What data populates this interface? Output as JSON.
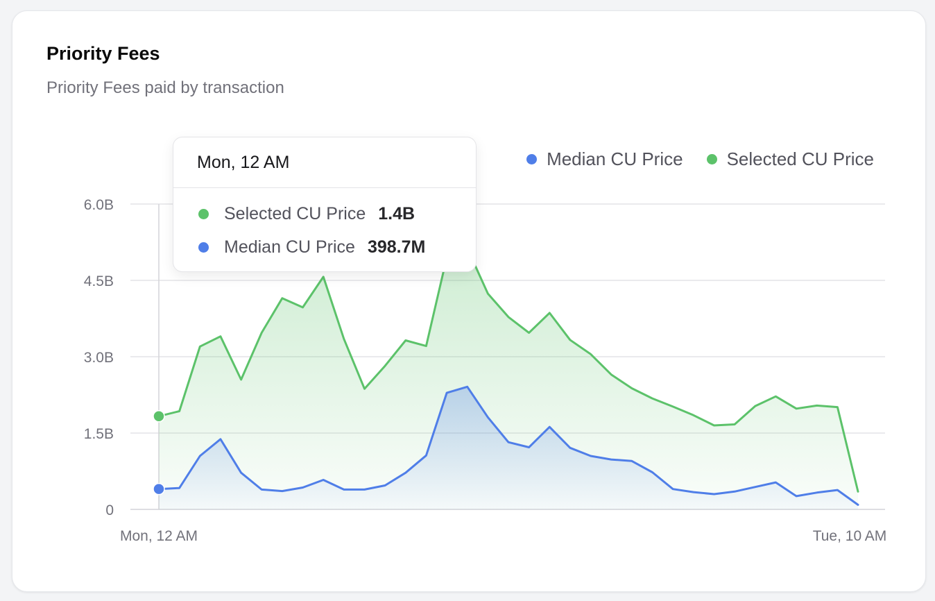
{
  "card": {
    "title": "Priority Fees",
    "subtitle": "Priority Fees paid by transaction"
  },
  "legend": [
    {
      "label": "Median CU Price",
      "color": "#4f7ee8"
    },
    {
      "label": "Selected CU Price",
      "color": "#5cc26a"
    }
  ],
  "tooltip": {
    "title": "Mon, 12 AM",
    "rows": [
      {
        "label": "Selected CU Price",
        "value": "1.4B",
        "color": "#5cc26a"
      },
      {
        "label": "Median CU Price",
        "value": "398.7M",
        "color": "#4f7ee8"
      }
    ]
  },
  "chart_data": {
    "type": "area",
    "title": "Priority Fees",
    "subtitle": "Priority Fees paid by transaction",
    "x_tick_labels": [
      "Mon, 12 AM",
      "Tue, 10 AM"
    ],
    "y_tick_labels": [
      "0",
      "1.5B",
      "3.0B",
      "4.5B",
      "6.0B"
    ],
    "y_ticks": [
      0,
      1.5,
      3.0,
      4.5,
      6.0
    ],
    "ylim": [
      0,
      6.0
    ],
    "x_count": 35,
    "grid": true,
    "legend_position": "top-right",
    "series": [
      {
        "name": "Selected CU Price",
        "color": "#5cc26a",
        "values": [
          1.83,
          1.93,
          3.2,
          3.4,
          2.55,
          3.47,
          4.15,
          3.97,
          4.57,
          3.35,
          2.37,
          2.82,
          3.32,
          3.21,
          4.95,
          5.13,
          4.24,
          3.78,
          3.47,
          3.86,
          3.33,
          3.05,
          2.65,
          2.38,
          2.18,
          2.02,
          1.85,
          1.65,
          1.67,
          2.03,
          2.22,
          1.98,
          2.04,
          2.01,
          0.35
        ]
      },
      {
        "name": "Median CU Price",
        "color": "#4f7ee8",
        "values": [
          0.4,
          0.42,
          1.05,
          1.38,
          0.72,
          0.39,
          0.36,
          0.43,
          0.58,
          0.39,
          0.39,
          0.47,
          0.72,
          1.06,
          2.29,
          2.41,
          1.81,
          1.32,
          1.22,
          1.62,
          1.21,
          1.05,
          0.98,
          0.95,
          0.73,
          0.4,
          0.34,
          0.3,
          0.35,
          0.44,
          0.53,
          0.26,
          0.33,
          0.38,
          0.09
        ]
      }
    ],
    "active_index": 0
  }
}
